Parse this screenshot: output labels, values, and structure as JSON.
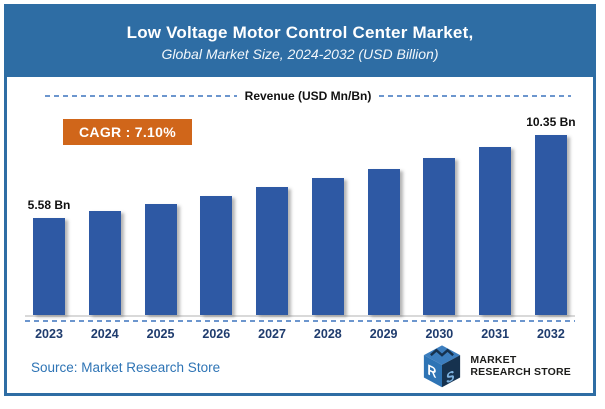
{
  "header": {
    "title": "Low Voltage Motor Control Center Market,",
    "subtitle": "Global Market Size, 2024-2032 (USD Billion)"
  },
  "chart": {
    "axis_title": "Revenue (USD Mn/Bn)",
    "cagr_label": "CAGR : 7.10%"
  },
  "chart_data": {
    "type": "bar",
    "title": "Low Voltage Motor Control Center Market, Global Market Size, 2024-2032 (USD Billion)",
    "ylabel": "Revenue (USD Mn/Bn)",
    "xlabel": "",
    "unit": "USD Billion",
    "categories": [
      "2023",
      "2024",
      "2025",
      "2026",
      "2027",
      "2028",
      "2029",
      "2030",
      "2031",
      "2032"
    ],
    "values": [
      5.58,
      5.98,
      6.4,
      6.86,
      7.34,
      7.86,
      8.42,
      9.02,
      9.66,
      10.35
    ],
    "ylim": [
      0,
      11
    ],
    "grid": false,
    "legend": false,
    "data_labels": {
      "0": "5.58 Bn",
      "9": "10.35 Bn"
    },
    "annotations": [
      "CAGR : 7.10%"
    ],
    "bar_color": "#2e59a4"
  },
  "footer": {
    "source": "Source: Market Research Store",
    "logo_line1": "MARKET",
    "logo_line2": "RESEARCH STORE"
  },
  "colors": {
    "header_background": "#2e6da4",
    "frame_border": "#2e6da4",
    "bar_fill": "#2e59a4",
    "year_label": "#1f3c6e",
    "cagr_background": "#d0661a",
    "dashed_line": "#6c96ce",
    "source_text": "#2e74b5"
  }
}
